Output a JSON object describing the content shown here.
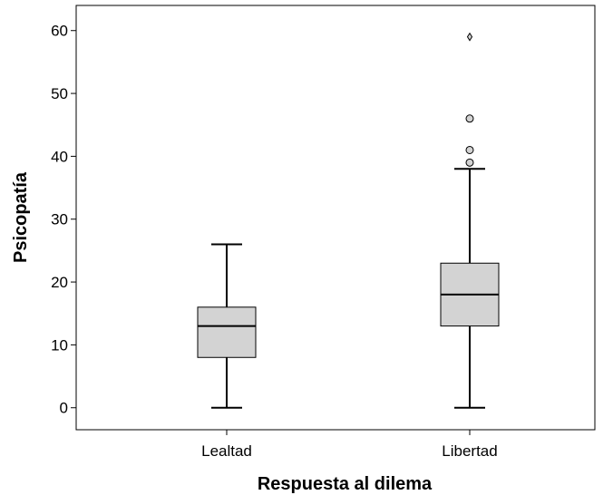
{
  "chart_data": {
    "type": "boxplot",
    "xlabel": "Respuesta al dilema",
    "ylabel": "Psicopatía",
    "ylim": [
      -3.5,
      64
    ],
    "yticks": [
      0,
      10,
      20,
      30,
      40,
      50,
      60
    ],
    "grid": false,
    "legend": "none",
    "box_fill": "#d3d3d3",
    "line_color": "#000000",
    "categories": [
      "Lealtad",
      "Libertad"
    ],
    "boxes": [
      {
        "category": "Lealtad",
        "whisker_low": 0,
        "q1": 8,
        "median": 13,
        "q3": 16,
        "whisker_high": 26,
        "outliers": [],
        "extremes": []
      },
      {
        "category": "Libertad",
        "whisker_low": 0,
        "q1": 13,
        "median": 18,
        "q3": 23,
        "whisker_high": 38,
        "outliers": [
          39,
          41,
          46
        ],
        "extremes": [
          59
        ]
      }
    ]
  }
}
